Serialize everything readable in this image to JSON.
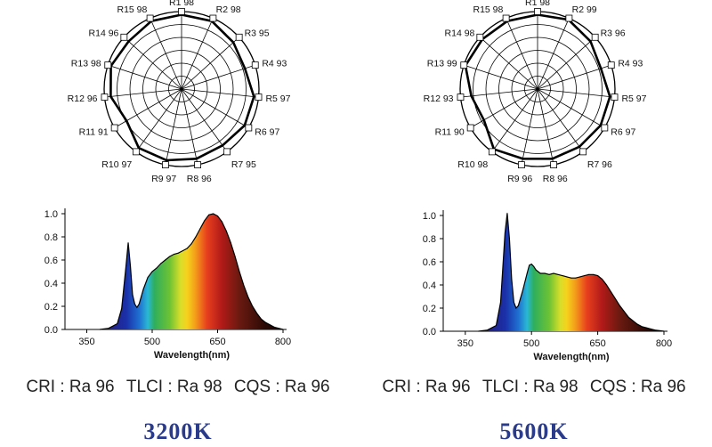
{
  "chart_data": [
    {
      "type": "radar",
      "title": "",
      "categories": [
        "R1",
        "R2",
        "R3",
        "R4",
        "R5",
        "R6",
        "R7",
        "R8",
        "R9",
        "R10",
        "R11",
        "R12",
        "R13",
        "R14",
        "R15"
      ],
      "values": [
        98,
        98,
        95,
        93,
        97,
        97,
        95,
        96,
        97,
        97,
        91,
        96,
        98,
        96,
        98
      ],
      "labels": [
        "R1 98",
        "R2 98",
        "R3 95",
        "R4 93",
        "R5 97",
        "R6 97",
        "R7 95",
        "R8 96",
        "R9 97",
        "R10 97",
        "R11 91",
        "R12 96",
        "R13 98",
        "R14 96",
        "R15 98"
      ]
    },
    {
      "type": "area",
      "title": "",
      "xlabel": "Wavelength(nm)",
      "ylabel": "",
      "xlim": [
        300,
        800
      ],
      "ylim": [
        0,
        1.0
      ],
      "xticks": [
        "350",
        "500",
        "650",
        "800"
      ],
      "yticks": [
        "0.0",
        "0.2",
        "0.4",
        "0.6",
        "0.8",
        "1.0"
      ],
      "x": [
        380,
        400,
        420,
        430,
        440,
        445,
        450,
        455,
        460,
        465,
        470,
        480,
        490,
        500,
        510,
        520,
        530,
        540,
        550,
        560,
        570,
        580,
        590,
        600,
        610,
        620,
        630,
        640,
        650,
        660,
        670,
        680,
        690,
        700,
        710,
        720,
        730,
        740,
        750,
        760,
        770,
        780,
        790,
        800
      ],
      "values": [
        0,
        0.01,
        0.05,
        0.18,
        0.55,
        0.75,
        0.55,
        0.3,
        0.22,
        0.19,
        0.22,
        0.35,
        0.45,
        0.5,
        0.53,
        0.57,
        0.6,
        0.63,
        0.65,
        0.66,
        0.68,
        0.7,
        0.74,
        0.8,
        0.87,
        0.94,
        0.99,
        1.0,
        0.98,
        0.93,
        0.85,
        0.75,
        0.63,
        0.5,
        0.38,
        0.28,
        0.2,
        0.14,
        0.09,
        0.06,
        0.04,
        0.02,
        0.01,
        0
      ]
    },
    {
      "type": "radar",
      "title": "",
      "categories": [
        "R1",
        "R2",
        "R3",
        "R4",
        "R5",
        "R6",
        "R7",
        "R8",
        "R9",
        "R10",
        "R11",
        "R12",
        "R13",
        "R14",
        "R15"
      ],
      "values": [
        98,
        99,
        96,
        93,
        97,
        97,
        96,
        96,
        96,
        98,
        90,
        93,
        99,
        98,
        98
      ],
      "labels": [
        "R1 98",
        "R2 99",
        "R3 96",
        "R4 93",
        "R5 97",
        "R6 97",
        "R7 96",
        "R8 96",
        "R9 96",
        "R10 98",
        "R11 90",
        "R12 93",
        "R13 99",
        "R14 98",
        "R15 98"
      ]
    },
    {
      "type": "area",
      "title": "",
      "xlabel": "Wavelength(nm)",
      "ylabel": "",
      "xlim": [
        300,
        800
      ],
      "ylim": [
        0,
        1.0
      ],
      "xticks": [
        "350",
        "500",
        "650",
        "800"
      ],
      "yticks": [
        "0.0",
        "0.2",
        "0.4",
        "0.6",
        "0.8",
        "1.0"
      ],
      "x": [
        380,
        400,
        420,
        430,
        440,
        445,
        450,
        455,
        460,
        465,
        470,
        480,
        490,
        495,
        500,
        505,
        510,
        520,
        530,
        540,
        550,
        560,
        570,
        580,
        590,
        600,
        610,
        620,
        630,
        640,
        650,
        660,
        670,
        680,
        690,
        700,
        710,
        720,
        730,
        740,
        750,
        760,
        770,
        780,
        790,
        800
      ],
      "values": [
        0,
        0.01,
        0.05,
        0.25,
        0.85,
        1.02,
        0.8,
        0.45,
        0.25,
        0.2,
        0.22,
        0.35,
        0.5,
        0.57,
        0.58,
        0.56,
        0.53,
        0.5,
        0.5,
        0.49,
        0.5,
        0.49,
        0.48,
        0.47,
        0.46,
        0.46,
        0.47,
        0.48,
        0.49,
        0.49,
        0.48,
        0.45,
        0.4,
        0.34,
        0.28,
        0.22,
        0.17,
        0.12,
        0.09,
        0.06,
        0.04,
        0.03,
        0.02,
        0.01,
        0.005,
        0
      ]
    }
  ],
  "panels": [
    {
      "cri": "CRI : Ra 96",
      "tlci": "TLCI : Ra 98",
      "cqs": "CQS : Ra 96",
      "temperature": "3200K"
    },
    {
      "cri": "CRI : Ra 96",
      "tlci": "TLCI : Ra 98",
      "cqs": "CQS : Ra 96",
      "temperature": "5600K"
    }
  ],
  "colors": {
    "text": "#222222",
    "temperature": "#2a3b8c",
    "curve": "#000000"
  }
}
